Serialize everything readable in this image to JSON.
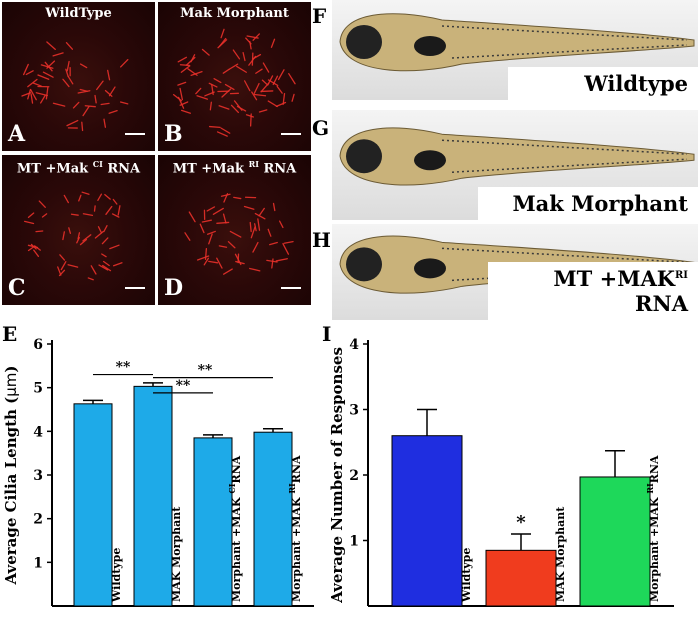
{
  "panels": {
    "A": {
      "letter": "A",
      "title": "WildType"
    },
    "B": {
      "letter": "B",
      "title": "Mak Morphant"
    },
    "C": {
      "letter": "C",
      "title_pre": "MT +Mak ",
      "title_sup": "CI",
      "title_post": " RNA"
    },
    "D": {
      "letter": "D",
      "title_pre": "MT +Mak ",
      "title_sup": "RI",
      "title_post": " RNA"
    },
    "F": {
      "letter": "F",
      "label": "Wildtype"
    },
    "G": {
      "letter": "G",
      "label": "Mak Morphant"
    },
    "H": {
      "letter": "H",
      "label_pre": "MT +MAK",
      "label_sup": "RI",
      "label_post": " RNA"
    }
  },
  "colors": {
    "cilia": "#e8302a",
    "bar_E": "#1eaae8",
    "bar_I_wildtype": "#1f2ee0",
    "bar_I_morphant": "#f03c1e",
    "bar_I_rescue": "#1ed85a"
  },
  "chart_data": [
    {
      "type": "bar",
      "panel": "E",
      "ylabel_pre": "Average Cilia Length (",
      "ylabel_unit": "μm",
      "ylabel_post": ")",
      "ylim": [
        0,
        6
      ],
      "yticks": [
        1,
        2,
        3,
        4,
        5,
        6
      ],
      "categories": [
        {
          "pre": "Wildtype",
          "sup": "",
          "post": ""
        },
        {
          "pre": "MAK Morphant",
          "sup": "",
          "post": ""
        },
        {
          "pre": "Morphant +MAK ",
          "sup": "CI",
          "post": "RNA"
        },
        {
          "pre": "Morphant +MAK ",
          "sup": "RI",
          "post": "RNA"
        }
      ],
      "values": [
        4.63,
        5.03,
        3.85,
        3.98
      ],
      "errors": [
        0.08,
        0.08,
        0.07,
        0.08
      ],
      "significance": [
        {
          "from": 0,
          "to": 1,
          "label": "**",
          "y": 5.3
        },
        {
          "from": 1,
          "to": 3,
          "label": "**",
          "y": 5.23
        },
        {
          "from": 1,
          "to": 2,
          "label": "**",
          "y": 4.88
        }
      ]
    },
    {
      "type": "bar",
      "panel": "I",
      "ylabel": "Average Number of Responses",
      "ylim": [
        0,
        4
      ],
      "yticks": [
        1,
        2,
        3,
        4
      ],
      "categories": [
        {
          "pre": "Wildtype",
          "sup": "",
          "post": ""
        },
        {
          "pre": "MAK Morphant",
          "sup": "",
          "post": ""
        },
        {
          "pre": "Morphant +MAK ",
          "sup": "RI",
          "post": "RNA"
        }
      ],
      "values": [
        2.6,
        0.85,
        1.97
      ],
      "errors": [
        0.4,
        0.25,
        0.4
      ],
      "annotations": [
        {
          "bar": 1,
          "label": "*"
        }
      ]
    }
  ]
}
